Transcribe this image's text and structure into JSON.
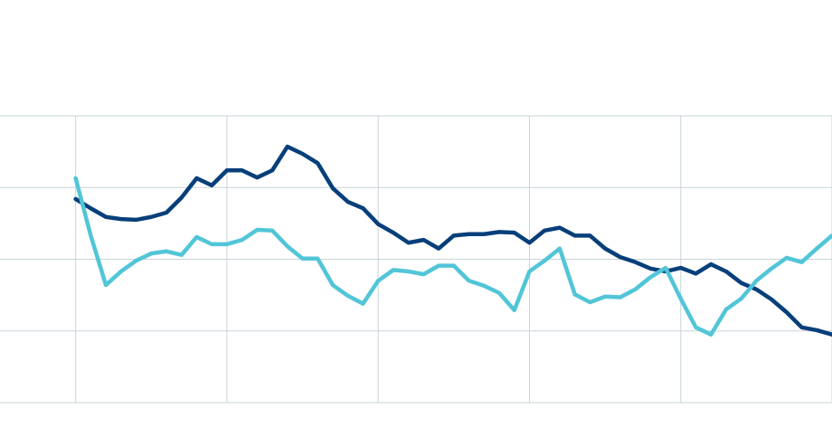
{
  "chart_data": {
    "type": "line",
    "x": [
      0,
      0.1,
      0.2,
      0.3,
      0.4,
      0.5,
      0.6,
      0.7,
      0.8,
      0.9,
      1,
      1.1,
      1.2,
      1.3,
      1.4,
      1.5,
      1.6,
      1.7,
      1.8,
      1.9,
      2,
      2.1,
      2.2,
      2.3,
      2.4,
      2.5,
      2.6,
      2.7,
      2.8,
      2.9,
      3,
      3.1,
      3.2,
      3.3,
      3.4,
      3.5,
      3.6,
      3.7,
      3.8,
      3.9,
      4,
      4.1,
      4.2,
      4.3,
      4.4,
      4.5,
      4.6,
      4.7,
      4.8,
      4.9,
      5
    ],
    "series": [
      {
        "color": "#063f7a",
        "values": [
          2.84,
          2.71,
          2.59,
          2.56,
          2.55,
          2.59,
          2.65,
          2.86,
          3.13,
          3.03,
          3.24,
          3.24,
          3.14,
          3.24,
          3.57,
          3.47,
          3.34,
          2.99,
          2.8,
          2.71,
          2.49,
          2.37,
          2.23,
          2.27,
          2.15,
          2.33,
          2.35,
          2.35,
          2.38,
          2.37,
          2.23,
          2.4,
          2.44,
          2.33,
          2.33,
          2.15,
          2.03,
          1.96,
          1.87,
          1.83,
          1.88,
          1.8,
          1.93,
          1.83,
          1.67,
          1.58,
          1.44,
          1.26,
          1.05,
          1.01,
          0.95
        ]
      },
      {
        "color": "#52c5d8",
        "values": [
          3.13,
          2.33,
          1.64,
          1.83,
          1.98,
          2.08,
          2.11,
          2.06,
          2.31,
          2.21,
          2.21,
          2.27,
          2.41,
          2.4,
          2.18,
          2.01,
          2.01,
          1.64,
          1.49,
          1.38,
          1.7,
          1.85,
          1.83,
          1.79,
          1.91,
          1.91,
          1.7,
          1.63,
          1.53,
          1.29,
          1.83,
          1.98,
          2.15,
          1.51,
          1.4,
          1.48,
          1.47,
          1.58,
          1.75,
          1.88,
          1.45,
          1.05,
          0.95,
          1.3,
          1.45,
          1.7,
          1.87,
          2.02,
          1.96,
          2.15,
          2.33
        ]
      }
    ],
    "xlim": [
      -0.5,
      5
    ],
    "xticks": [
      0,
      1,
      2,
      3,
      4,
      5
    ],
    "ylim": [
      0,
      4
    ],
    "yticks": [
      0,
      1,
      2,
      3,
      4
    ],
    "grid": true,
    "grid_color": "#c9d4d9"
  }
}
